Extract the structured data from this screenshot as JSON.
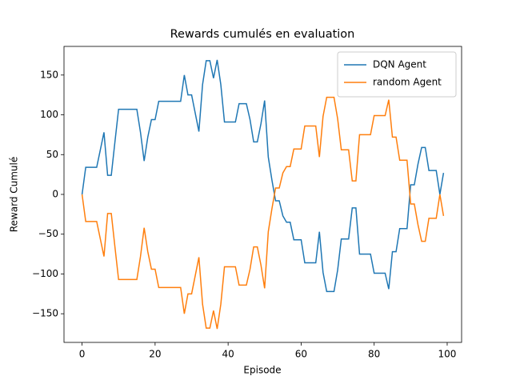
{
  "chart_data": {
    "type": "line",
    "title": "Rewards cumulés en evaluation",
    "xlabel": "Episode",
    "ylabel": "Reward Cumulé",
    "x": [
      0,
      1,
      2,
      3,
      4,
      5,
      6,
      7,
      8,
      9,
      10,
      11,
      12,
      13,
      14,
      15,
      16,
      17,
      18,
      19,
      20,
      21,
      22,
      23,
      24,
      25,
      26,
      27,
      28,
      29,
      30,
      31,
      32,
      33,
      34,
      35,
      36,
      37,
      38,
      39,
      40,
      41,
      42,
      43,
      44,
      45,
      46,
      47,
      48,
      49,
      50,
      51,
      52,
      53,
      54,
      55,
      56,
      57,
      58,
      59,
      60,
      61,
      62,
      63,
      64,
      65,
      66,
      67,
      68,
      69,
      70,
      71,
      72,
      73,
      74,
      75,
      76,
      77,
      78,
      79,
      80,
      81,
      82,
      83,
      84,
      85,
      86,
      87,
      88,
      89,
      90,
      91,
      92,
      93,
      94,
      95,
      96,
      97,
      98,
      99
    ],
    "series": [
      {
        "name": "DQN Agent",
        "color": "#1f77b4",
        "values": [
          0,
          34,
          34,
          34,
          34,
          56,
          78,
          24,
          24,
          66,
          107,
          107,
          107,
          107,
          107,
          107,
          78,
          42,
          72,
          94,
          94,
          117,
          117,
          117,
          117,
          117,
          117,
          117,
          150,
          125,
          125,
          102,
          79,
          138,
          168,
          168,
          146,
          169,
          138,
          91,
          91,
          91,
          91,
          114,
          114,
          114,
          94,
          66,
          66,
          89,
          118,
          47,
          18,
          -8,
          -8,
          -27,
          -35,
          -35,
          -57,
          -57,
          -57,
          -86,
          -86,
          -86,
          -86,
          -47,
          -98,
          -122,
          -122,
          -122,
          -95,
          -56,
          -56,
          -56,
          -17,
          -17,
          -75,
          -75,
          -75,
          -75,
          -99,
          -99,
          -99,
          -99,
          -119,
          -72,
          -72,
          -43,
          -43,
          -43,
          12,
          12,
          38,
          59,
          59,
          30,
          30,
          30,
          0,
          27
        ]
      },
      {
        "name": "random Agent",
        "color": "#ff7f0e",
        "values": [
          0,
          -34,
          -34,
          -34,
          -34,
          -56,
          -78,
          -24,
          -24,
          -66,
          -107,
          -107,
          -107,
          -107,
          -107,
          -107,
          -78,
          -42,
          -72,
          -94,
          -94,
          -117,
          -117,
          -117,
          -117,
          -117,
          -117,
          -117,
          -150,
          -125,
          -125,
          -102,
          -79,
          -138,
          -168,
          -168,
          -146,
          -169,
          -138,
          -91,
          -91,
          -91,
          -91,
          -114,
          -114,
          -114,
          -94,
          -66,
          -66,
          -89,
          -118,
          -47,
          -18,
          8,
          8,
          27,
          35,
          35,
          57,
          57,
          57,
          86,
          86,
          86,
          86,
          47,
          98,
          122,
          122,
          122,
          95,
          56,
          56,
          56,
          17,
          17,
          75,
          75,
          75,
          75,
          99,
          99,
          99,
          99,
          119,
          72,
          72,
          43,
          43,
          43,
          -12,
          -12,
          -38,
          -59,
          -59,
          -30,
          -30,
          -30,
          0,
          -27
        ]
      }
    ],
    "xlim": [
      -4.95,
      103.95
    ],
    "xticks": [
      0,
      20,
      40,
      60,
      80,
      100
    ],
    "ylim": [
      -186,
      186
    ],
    "yticks": [
      {
        "value": -150,
        "label": "−150"
      },
      {
        "value": -100,
        "label": "−100"
      },
      {
        "value": -50,
        "label": "−50"
      },
      0,
      50,
      100,
      150
    ],
    "legend": "upper right",
    "grid": false
  }
}
